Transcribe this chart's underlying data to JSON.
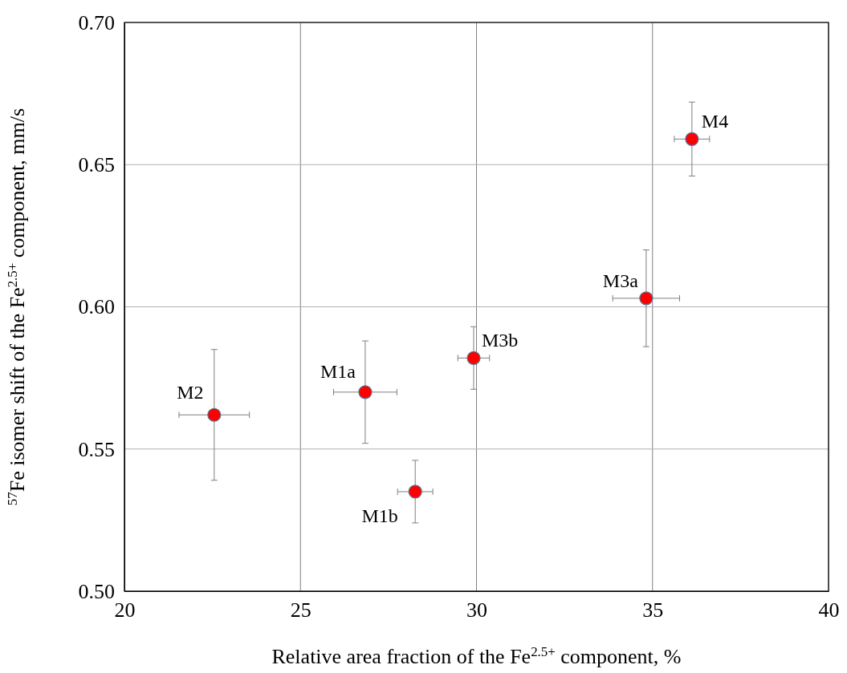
{
  "chart_data": {
    "type": "scatter",
    "xlabel": "Relative area fraction of the Fe$^{2.5+}$ component, %",
    "ylabel": "$^{57}$Fe isomer shift of the Fe$^{2.5+}$ component, mm/s",
    "x": [
      22.55,
      26.84,
      28.26,
      29.92,
      34.82,
      36.12
    ],
    "series": [
      {
        "color": "#ff0000",
        "values": [
          0.562,
          0.57,
          0.535,
          0.582,
          0.603,
          0.659
        ],
        "errors": [
          0.023,
          0.018,
          0.011,
          0.011,
          0.017,
          0.013
        ],
        "xerrors": [
          1.0,
          0.9,
          0.5,
          0.45,
          0.95,
          0.5
        ]
      }
    ],
    "xlim": [
      20,
      40
    ],
    "xticks": [
      20,
      25,
      30,
      35,
      40
    ],
    "ylim": [
      0.5,
      0.7
    ],
    "yticks": [
      {
        "value": 0.5,
        "label": "0.50"
      },
      {
        "value": 0.55,
        "label": "0.55"
      },
      {
        "value": 0.6,
        "label": "0.60"
      },
      {
        "value": 0.65,
        "label": "0.65"
      },
      {
        "value": 0.7,
        "label": "0.70"
      }
    ],
    "grid": true,
    "marker": "circle",
    "annotations": [
      {
        "text": "M2",
        "x": 22.55,
        "y": 0.562
      },
      {
        "text": "M1a",
        "x": 26.84,
        "y": 0.57
      },
      {
        "text": "M1b",
        "x": 28.26,
        "y": 0.535
      },
      {
        "text": "M3b",
        "x": 29.92,
        "y": 0.582
      },
      {
        "text": "M3a",
        "x": 34.82,
        "y": 0.603
      },
      {
        "text": "M4",
        "x": 36.12,
        "y": 0.659
      }
    ]
  }
}
